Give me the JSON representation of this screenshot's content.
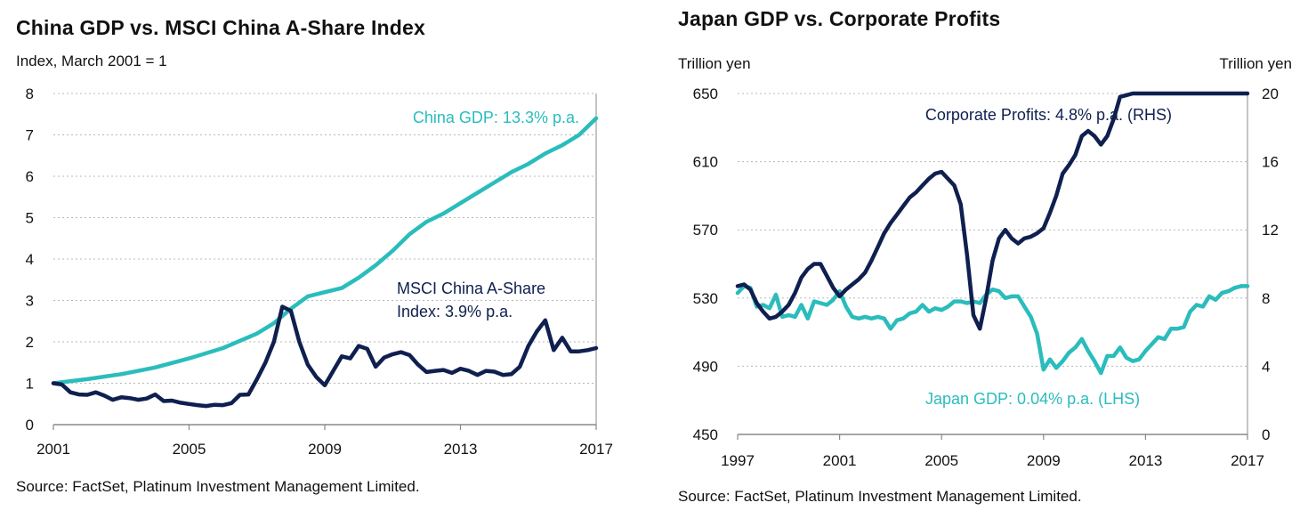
{
  "left": {
    "title": "China GDP vs. MSCI China A-Share Index",
    "subtitle": "Index, March 2001 = 1",
    "source": "Source: FactSet, Platinum Investment Management Limited."
  },
  "right": {
    "title": "Japan GDP vs. Corporate Profits",
    "source": "Source: FactSet, Platinum Investment Management Limited."
  },
  "colors": {
    "teal": "#2bbcbc",
    "navy": "#0f1f4f",
    "grid": "#b8b8b8",
    "axis": "#888888"
  },
  "chart_data": [
    {
      "type": "line",
      "title": "China GDP vs. MSCI China A-Share Index",
      "ylabel": "Index, March 2001 = 1",
      "xlim": [
        2001,
        2017
      ],
      "ylim": [
        0,
        8
      ],
      "xticks": [
        "2001",
        "2005",
        "2009",
        "2013",
        "2017"
      ],
      "yticks": [
        "0",
        "1",
        "2",
        "3",
        "4",
        "5",
        "6",
        "7",
        "8"
      ],
      "grid": true,
      "series": [
        {
          "name": "China GDP: 13.3% p.a.",
          "color": "#2bbcbc",
          "x": [
            2001.0,
            2002.0,
            2003.0,
            2004.0,
            2005.0,
            2006.0,
            2007.0,
            2007.5,
            2008.0,
            2008.5,
            2009.0,
            2009.5,
            2010.0,
            2010.5,
            2011.0,
            2011.5,
            2012.0,
            2012.5,
            2013.0,
            2013.5,
            2014.0,
            2014.5,
            2015.0,
            2015.5,
            2016.0,
            2016.5,
            2017.0
          ],
          "y": [
            1.0,
            1.1,
            1.22,
            1.38,
            1.6,
            1.85,
            2.2,
            2.45,
            2.8,
            3.1,
            3.2,
            3.3,
            3.55,
            3.85,
            4.2,
            4.6,
            4.9,
            5.1,
            5.35,
            5.6,
            5.85,
            6.1,
            6.3,
            6.55,
            6.75,
            7.0,
            7.4
          ]
        },
        {
          "name": "MSCI China A-Share Index: 3.9% p.a.",
          "color": "#0f1f4f",
          "x": [
            2001.0,
            2001.25,
            2001.5,
            2001.75,
            2002.0,
            2002.25,
            2002.5,
            2002.75,
            2003.0,
            2003.25,
            2003.5,
            2003.75,
            2004.0,
            2004.25,
            2004.5,
            2004.75,
            2005.0,
            2005.25,
            2005.5,
            2005.75,
            2006.0,
            2006.25,
            2006.5,
            2006.75,
            2007.0,
            2007.25,
            2007.5,
            2007.75,
            2008.0,
            2008.25,
            2008.5,
            2008.75,
            2009.0,
            2009.25,
            2009.5,
            2009.75,
            2010.0,
            2010.25,
            2010.5,
            2010.75,
            2011.0,
            2011.25,
            2011.5,
            2011.75,
            2012.0,
            2012.25,
            2012.5,
            2012.75,
            2013.0,
            2013.25,
            2013.5,
            2013.75,
            2014.0,
            2014.25,
            2014.5,
            2014.75,
            2015.0,
            2015.25,
            2015.5,
            2015.75,
            2016.0,
            2016.25,
            2016.5,
            2016.75,
            2017.0
          ],
          "y": [
            1.0,
            0.97,
            0.78,
            0.73,
            0.72,
            0.78,
            0.7,
            0.6,
            0.66,
            0.64,
            0.6,
            0.63,
            0.73,
            0.57,
            0.58,
            0.53,
            0.5,
            0.47,
            0.45,
            0.48,
            0.47,
            0.52,
            0.72,
            0.73,
            1.1,
            1.5,
            2.0,
            2.85,
            2.75,
            2.0,
            1.45,
            1.15,
            0.95,
            1.3,
            1.65,
            1.6,
            1.9,
            1.83,
            1.4,
            1.62,
            1.7,
            1.75,
            1.68,
            1.45,
            1.27,
            1.3,
            1.32,
            1.25,
            1.35,
            1.3,
            1.2,
            1.3,
            1.28,
            1.2,
            1.22,
            1.4,
            1.9,
            2.25,
            2.52,
            1.8,
            2.1,
            1.77,
            1.77,
            1.8,
            1.85
          ]
        }
      ],
      "annotations": [
        {
          "text": "China GDP: 13.3% p.a.",
          "color": "#2bbcbc"
        },
        {
          "text": "MSCI China A-Share",
          "color": "#0f1f4f"
        },
        {
          "text": "Index: 3.9% p.a.",
          "color": "#0f1f4f"
        }
      ]
    },
    {
      "type": "line",
      "title": "Japan GDP vs. Corporate Profits",
      "ylabel_left": "Trillion yen",
      "ylabel_right": "Trillion yen",
      "xlim": [
        1997,
        2017
      ],
      "ylim_left": [
        450,
        650
      ],
      "ylim_right": [
        0,
        20
      ],
      "xticks": [
        "1997",
        "2001",
        "2005",
        "2009",
        "2013",
        "2017"
      ],
      "yticks_left": [
        "450",
        "490",
        "530",
        "570",
        "610",
        "650"
      ],
      "yticks_right": [
        "0",
        "4",
        "8",
        "12",
        "16",
        "20"
      ],
      "grid": true,
      "series": [
        {
          "name": "Japan GDP: 0.04% p.a. (LHS)",
          "axis": "left",
          "color": "#2bbcbc",
          "x": [
            1997.0,
            1997.25,
            1997.5,
            1997.75,
            1998.0,
            1998.25,
            1998.5,
            1998.75,
            1999.0,
            1999.25,
            1999.5,
            1999.75,
            2000.0,
            2000.25,
            2000.5,
            2000.75,
            2001.0,
            2001.25,
            2001.5,
            2001.75,
            2002.0,
            2002.25,
            2002.5,
            2002.75,
            2003.0,
            2003.25,
            2003.5,
            2003.75,
            2004.0,
            2004.25,
            2004.5,
            2004.75,
            2005.0,
            2005.25,
            2005.5,
            2005.75,
            2006.0,
            2006.25,
            2006.5,
            2006.75,
            2007.0,
            2007.25,
            2007.5,
            2007.75,
            2008.0,
            2008.25,
            2008.5,
            2008.75,
            2009.0,
            2009.25,
            2009.5,
            2009.75,
            2010.0,
            2010.25,
            2010.5,
            2010.75,
            2011.0,
            2011.25,
            2011.5,
            2011.75,
            2012.0,
            2012.25,
            2012.5,
            2012.75,
            2013.0,
            2013.25,
            2013.5,
            2013.75,
            2014.0,
            2014.25,
            2014.5,
            2014.75,
            2015.0,
            2015.25,
            2015.5,
            2015.75,
            2016.0,
            2016.25,
            2016.5,
            2016.75,
            2017.0
          ],
          "y": [
            533,
            537,
            536,
            525,
            526,
            524,
            532,
            519,
            520,
            519,
            526,
            518,
            528,
            527,
            526,
            529,
            534,
            525,
            519,
            518,
            519,
            518,
            519,
            518,
            512,
            517,
            518,
            521,
            522,
            526,
            522,
            524,
            523,
            525,
            528,
            528,
            527,
            528,
            527,
            532,
            535,
            534,
            530,
            531,
            531,
            525,
            519,
            509,
            488,
            494,
            489,
            493,
            498,
            501,
            506,
            499,
            493,
            486,
            496,
            496,
            501,
            495,
            493,
            494,
            499,
            503,
            507,
            506,
            512,
            512,
            513,
            522,
            526,
            525,
            531,
            529,
            533,
            534,
            536,
            537,
            537
          ]
        },
        {
          "name": "Corporate Profits: 4.8% p.a. (RHS)",
          "axis": "right",
          "color": "#0f1f4f",
          "x": [
            1997.0,
            1997.25,
            1997.5,
            1997.75,
            1998.0,
            1998.25,
            1998.5,
            1998.75,
            1999.0,
            1999.25,
            1999.5,
            1999.75,
            2000.0,
            2000.25,
            2000.5,
            2000.75,
            2001.0,
            2001.25,
            2001.5,
            2001.75,
            2002.0,
            2002.25,
            2002.5,
            2002.75,
            2003.0,
            2003.25,
            2003.5,
            2003.75,
            2004.0,
            2004.25,
            2004.5,
            2004.75,
            2005.0,
            2005.25,
            2005.5,
            2005.75,
            2006.0,
            2006.25,
            2006.5,
            2006.75,
            2007.0,
            2007.25,
            2007.5,
            2007.75,
            2008.0,
            2008.25,
            2008.5,
            2008.75,
            2009.0,
            2009.25,
            2009.5,
            2009.75,
            2010.0,
            2010.25,
            2010.5,
            2010.75,
            2011.0,
            2011.25,
            2011.5,
            2011.75,
            2012.0,
            2012.25,
            2012.5,
            2012.75,
            2013.0,
            2013.25,
            2013.5,
            2013.75,
            2014.0,
            2014.25,
            2014.5,
            2014.75,
            2015.0,
            2015.25,
            2015.5,
            2015.75,
            2016.0,
            2016.25,
            2016.5,
            2016.75,
            2017.0
          ],
          "y": [
            8.7,
            8.8,
            8.5,
            7.7,
            7.2,
            6.8,
            6.9,
            7.2,
            7.6,
            8.3,
            9.2,
            9.7,
            10.0,
            10.0,
            9.3,
            8.6,
            8.1,
            8.5,
            8.8,
            9.1,
            9.5,
            10.2,
            11.0,
            11.8,
            12.4,
            12.9,
            13.4,
            13.9,
            14.2,
            14.6,
            15.0,
            15.3,
            15.4,
            15.0,
            14.6,
            13.5,
            10.5,
            7.0,
            6.2,
            8.0,
            10.2,
            11.5,
            12.0,
            11.5,
            11.2,
            11.5,
            11.6,
            11.8,
            12.1,
            13.0,
            14.0,
            15.3,
            15.8,
            16.4,
            17.5,
            17.8,
            17.5,
            17.0,
            17.5,
            18.5,
            19.8,
            19.9,
            20.0,
            20.0,
            20.0,
            20.0,
            20.0,
            20.0,
            20.0,
            20.0,
            20.0,
            20.0,
            20.0,
            20.0,
            20.0,
            20.0,
            20.0,
            20.0,
            20.0,
            20.0,
            20.0
          ]
        }
      ],
      "annotations": [
        {
          "text": "Corporate Profits: 4.8% p.a. (RHS)",
          "color": "#0f1f4f"
        },
        {
          "text": "Japan GDP: 0.04% p.a. (LHS)",
          "color": "#2bbcbc"
        }
      ]
    }
  ]
}
